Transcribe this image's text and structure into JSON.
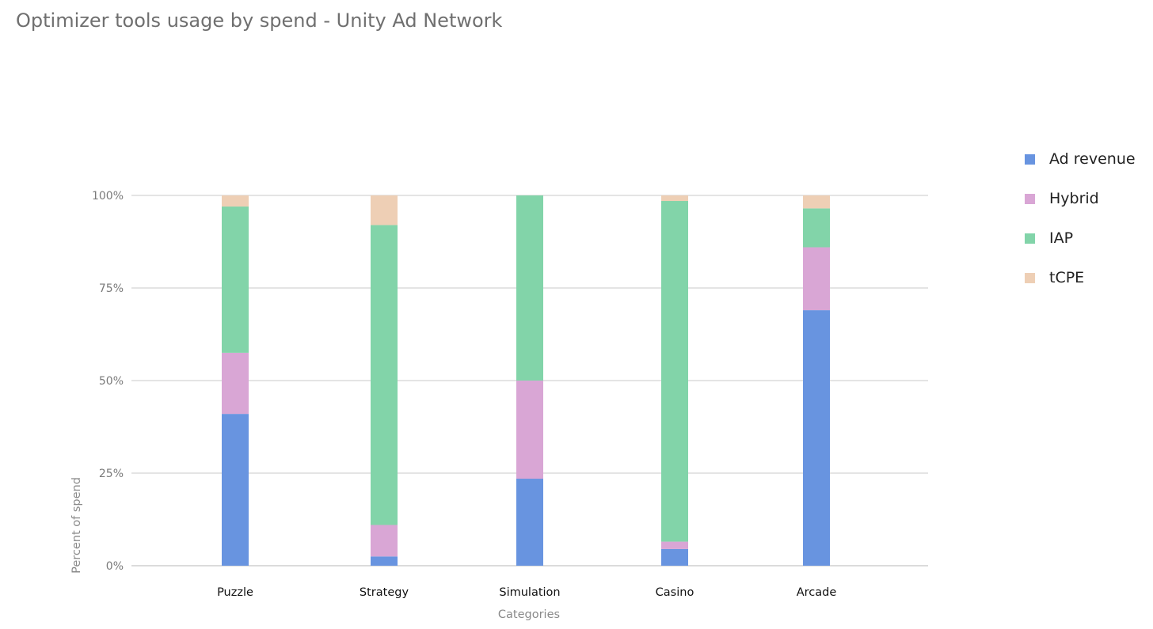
{
  "chart_data": {
    "type": "bar",
    "stacked": true,
    "title": "Optimizer tools usage by spend - Unity Ad Network",
    "xlabel": "Categories",
    "ylabel": "Percent of spend",
    "ylim": [
      0,
      100
    ],
    "yticks": [
      "0%",
      "25%",
      "50%",
      "75%",
      "100%"
    ],
    "ytick_values": [
      0,
      25,
      50,
      75,
      100
    ],
    "grid": true,
    "legend_position": "right",
    "categories": [
      "Puzzle",
      "Strategy",
      "Simulation",
      "Casino",
      "Arcade"
    ],
    "series": [
      {
        "name": "Ad revenue",
        "color": "#6894e0",
        "values": [
          41,
          2.5,
          23.5,
          4.5,
          69
        ]
      },
      {
        "name": "Hybrid",
        "color": "#d9a6d5",
        "values": [
          16.5,
          8.5,
          26.5,
          2,
          17
        ]
      },
      {
        "name": "IAP",
        "color": "#82d4a9",
        "values": [
          39.5,
          81,
          50,
          92,
          10.5
        ]
      },
      {
        "name": "tCPE",
        "color": "#eecfb5",
        "values": [
          3,
          8,
          0,
          1.5,
          3.5
        ]
      }
    ]
  }
}
